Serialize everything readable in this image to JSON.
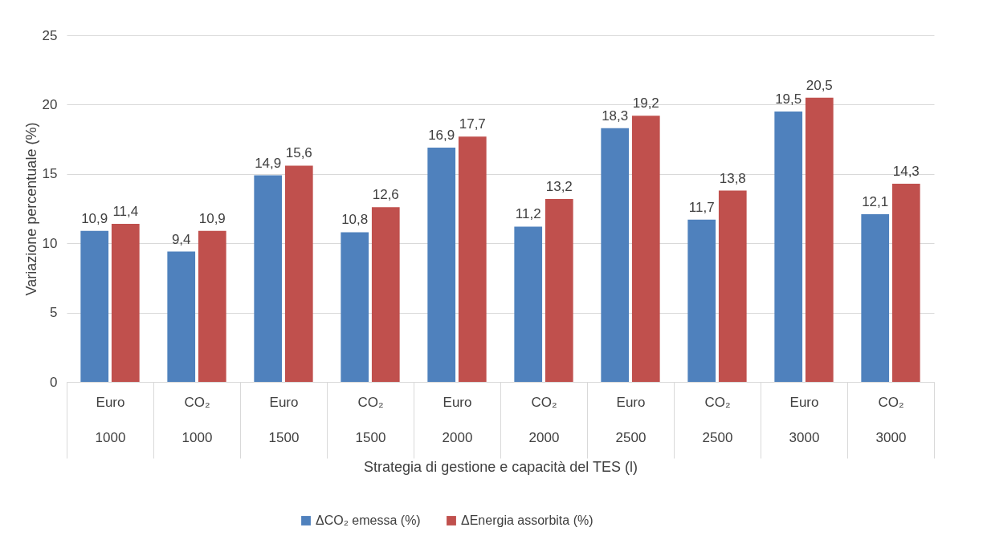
{
  "chart_data": {
    "type": "bar",
    "xlabel": "Strategia di gestione e capacità del TES (l)",
    "ylabel": "Variazione percentuale (%)",
    "categories": [
      "Euro\n1000",
      "CO₂\n1000",
      "Euro\n1500",
      "CO₂\n1500",
      "Euro\n2000",
      "CO₂\n2000",
      "Euro\n2500",
      "CO₂\n2500",
      "Euro\n3000",
      "CO₂\n3000"
    ],
    "series": [
      {
        "name": "ΔCO₂ emessa (%)",
        "color": "#4f81bd",
        "values": [
          10.9,
          9.4,
          14.9,
          10.8,
          16.9,
          11.2,
          18.3,
          11.7,
          19.5,
          12.1
        ],
        "value_labels": [
          "10,9",
          "9,4",
          "14,9",
          "10,8",
          "16,9",
          "11,2",
          "18,3",
          "11,7",
          "19,5",
          "12,1"
        ]
      },
      {
        "name": "ΔEnergia assorbita (%)",
        "color": "#c0504d",
        "values": [
          11.4,
          10.9,
          15.6,
          12.6,
          17.7,
          13.2,
          19.2,
          13.8,
          20.5,
          14.3
        ],
        "value_labels": [
          "11,4",
          "10,9",
          "15,6",
          "12,6",
          "17,7",
          "13,2",
          "19,2",
          "13,8",
          "20,5",
          "14,3"
        ]
      }
    ],
    "ylim": [
      0,
      25
    ],
    "yticks": [
      0,
      5,
      10,
      15,
      20,
      25
    ],
    "grid": "y",
    "legend": "bottom"
  }
}
